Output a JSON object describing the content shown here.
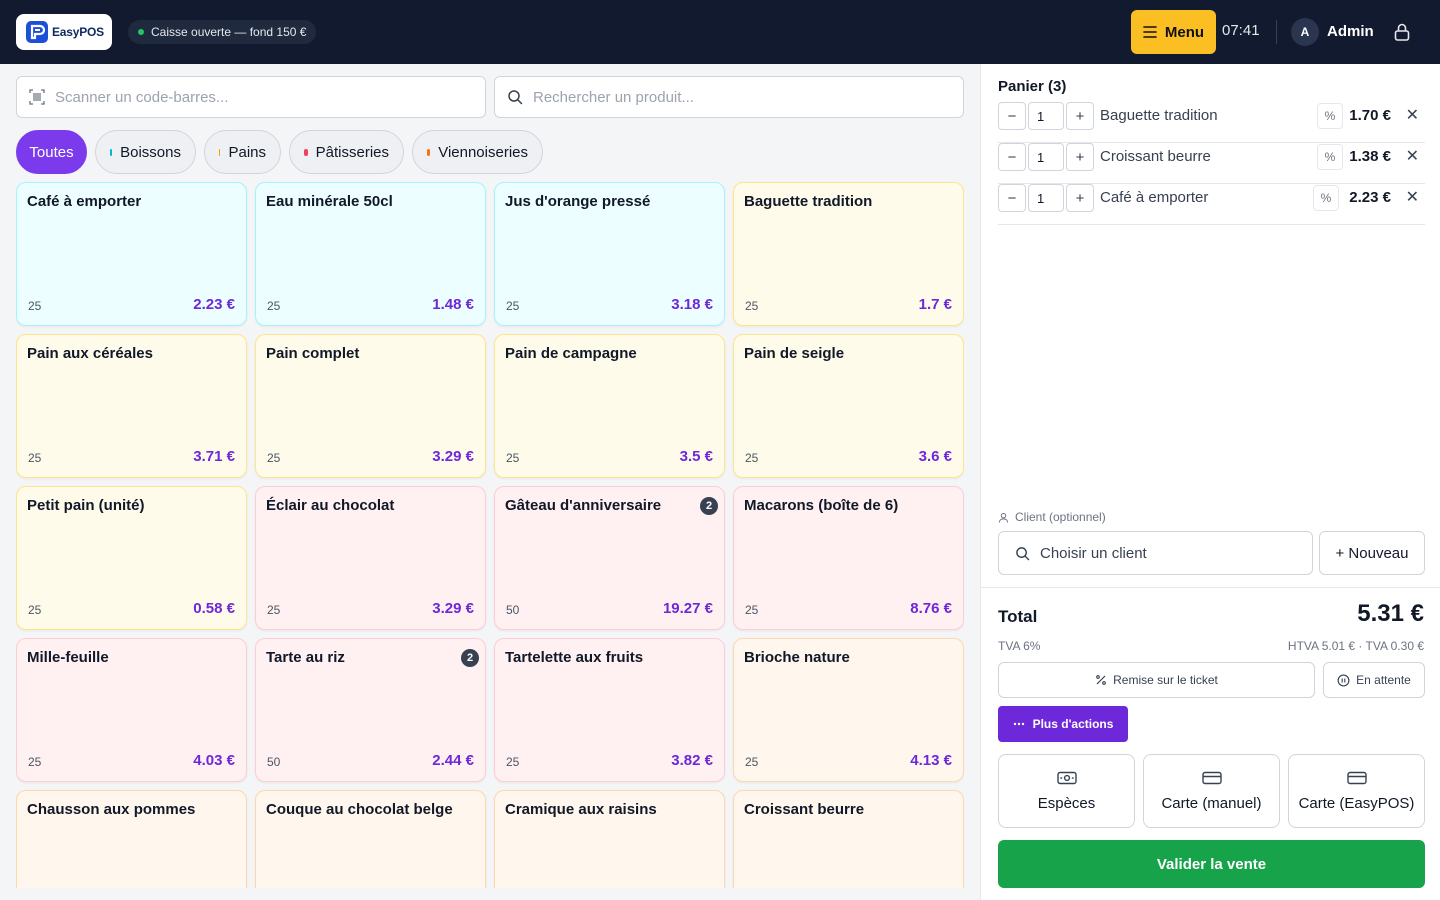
{
  "header": {
    "logo_text": "EasyPOS",
    "register_status": "Caisse ouverte — fond 150 €",
    "menu_label": "Menu",
    "time": "07:41",
    "user_initial": "A",
    "user_name": "Admin",
    "colors": {
      "bar": "#111a2e",
      "menu": "#fbbf24",
      "status_dot": "#22c55e"
    }
  },
  "search": {
    "barcode_placeholder": "Scanner un code-barres...",
    "product_placeholder": "Rechercher un produit..."
  },
  "categories": [
    {
      "label": "Toutes",
      "active": true
    },
    {
      "label": "Boissons",
      "dot": "#06b6d4"
    },
    {
      "label": "Pains",
      "dot": "#f59e0b"
    },
    {
      "label": "Pâtisseries",
      "dot": "#f43f5e"
    },
    {
      "label": "Viennoiseries",
      "dot": "#f97316"
    }
  ],
  "products": [
    {
      "name": "Café à emporter",
      "stock": "25",
      "price": "2.23 €",
      "color": "cyan"
    },
    {
      "name": "Eau minérale 50cl",
      "stock": "25",
      "price": "1.48 €",
      "color": "cyan"
    },
    {
      "name": "Jus d'orange pressé",
      "stock": "25",
      "price": "3.18 €",
      "color": "cyan"
    },
    {
      "name": "Baguette tradition",
      "stock": "25",
      "price": "1.7 €",
      "color": "yellow"
    },
    {
      "name": "Pain aux céréales",
      "stock": "25",
      "price": "3.71 €",
      "color": "yellow"
    },
    {
      "name": "Pain complet",
      "stock": "25",
      "price": "3.29 €",
      "color": "yellow"
    },
    {
      "name": "Pain de campagne",
      "stock": "25",
      "price": "3.5 €",
      "color": "yellow"
    },
    {
      "name": "Pain de seigle",
      "stock": "25",
      "price": "3.6 €",
      "color": "yellow"
    },
    {
      "name": "Petit pain (unité)",
      "stock": "25",
      "price": "0.58 €",
      "color": "yellow"
    },
    {
      "name": "Éclair au chocolat",
      "stock": "25",
      "price": "3.29 €",
      "color": "pink"
    },
    {
      "name": "Gâteau d'anniversaire",
      "stock": "50",
      "price": "19.27 €",
      "color": "pink",
      "badge": "2"
    },
    {
      "name": "Macarons (boîte de 6)",
      "stock": "25",
      "price": "8.76 €",
      "color": "pink"
    },
    {
      "name": "Mille-feuille",
      "stock": "25",
      "price": "4.03 €",
      "color": "pink"
    },
    {
      "name": "Tarte au riz",
      "stock": "50",
      "price": "2.44 €",
      "color": "pink",
      "badge": "2"
    },
    {
      "name": "Tartelette aux fruits",
      "stock": "25",
      "price": "3.82 €",
      "color": "pink"
    },
    {
      "name": "Brioche nature",
      "stock": "25",
      "price": "4.13 €",
      "color": "orange"
    },
    {
      "name": "Chausson aux pommes",
      "stock": "",
      "price": "",
      "color": "orange"
    },
    {
      "name": "Couque au chocolat belge",
      "stock": "",
      "price": "",
      "color": "orange"
    },
    {
      "name": "Cramique aux raisins",
      "stock": "",
      "price": "",
      "color": "orange"
    },
    {
      "name": "Croissant beurre",
      "stock": "",
      "price": "",
      "color": "orange"
    }
  ],
  "cart": {
    "title": "Panier (3)",
    "items": [
      {
        "qty": "1",
        "name": "Baguette tradition",
        "price": "1.70 €"
      },
      {
        "qty": "1",
        "name": "Croissant beurre",
        "price": "1.38 €"
      },
      {
        "qty": "1",
        "name": "Café à emporter",
        "price": "2.23 €"
      }
    ],
    "minus": "−",
    "plus": "+",
    "discount_symbol": "%",
    "remove_symbol": "✕"
  },
  "client": {
    "label": "Client (optionnel)",
    "placeholder": "Choisir un client",
    "new_label": "+ Nouveau"
  },
  "totals": {
    "label": "Total",
    "value": "5.31 €",
    "tva_rate": "TVA 6%",
    "breakdown": "HTVA 5.01 € · TVA 0.30 €"
  },
  "actions": {
    "remise": "Remise sur le ticket",
    "attente": "En attente",
    "plus": "Plus d'actions"
  },
  "payments": [
    {
      "label": "Espèces",
      "icon": "cash-icon"
    },
    {
      "label": "Carte (manuel)",
      "icon": "card-icon"
    },
    {
      "label": "Carte (EasyPOS)",
      "icon": "card-icon"
    }
  ],
  "validate_label": "Valider la vente"
}
